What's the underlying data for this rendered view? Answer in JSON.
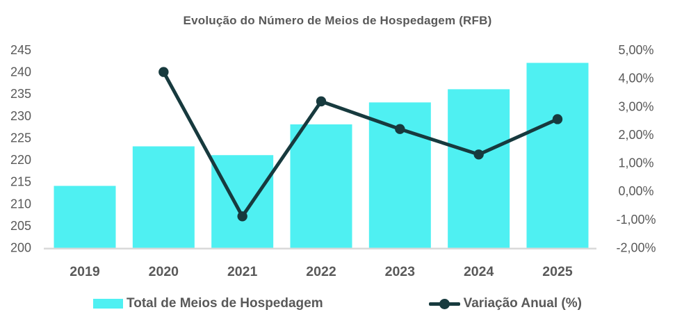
{
  "chart": {
    "title": "Evolução do Número de Meios de Hospedagem (RFB)"
  },
  "chart_data": {
    "type": "bar",
    "subtype": "combo-bar-line",
    "title": "Evolução do Número de Meios de Hospedagem (RFB)",
    "categories": [
      "2019",
      "2020",
      "2021",
      "2022",
      "2023",
      "2024",
      "2025"
    ],
    "series": [
      {
        "name": "Total de Meios de Hospedagem",
        "type": "bar",
        "axis": "left",
        "color": "#4FF0F2",
        "values": [
          214,
          223,
          221,
          228,
          233,
          236,
          242
        ]
      },
      {
        "name": "Variação Anual (%)",
        "type": "line",
        "axis": "right",
        "color": "#173A3E",
        "x": [
          "2020",
          "2021",
          "2022",
          "2023",
          "2024",
          "2025"
        ],
        "values": [
          4.21,
          -0.9,
          3.17,
          2.19,
          1.29,
          2.54
        ]
      }
    ],
    "left_axis": {
      "min": 200,
      "max": 245,
      "step": 5,
      "ticks": [
        "200",
        "205",
        "210",
        "215",
        "220",
        "225",
        "230",
        "235",
        "240",
        "245"
      ]
    },
    "right_axis": {
      "min": -2,
      "max": 5,
      "step": 1,
      "ticks": [
        "-2,00%",
        "-1,00%",
        "0,00%",
        "1,00%",
        "2,00%",
        "3,00%",
        "4,00%",
        "5,00%"
      ]
    },
    "xlabel": "",
    "ylabel": "",
    "grid": false,
    "legend_position": "bottom",
    "axis_line_color": "#d9d9d9",
    "text_color": "#595959"
  }
}
